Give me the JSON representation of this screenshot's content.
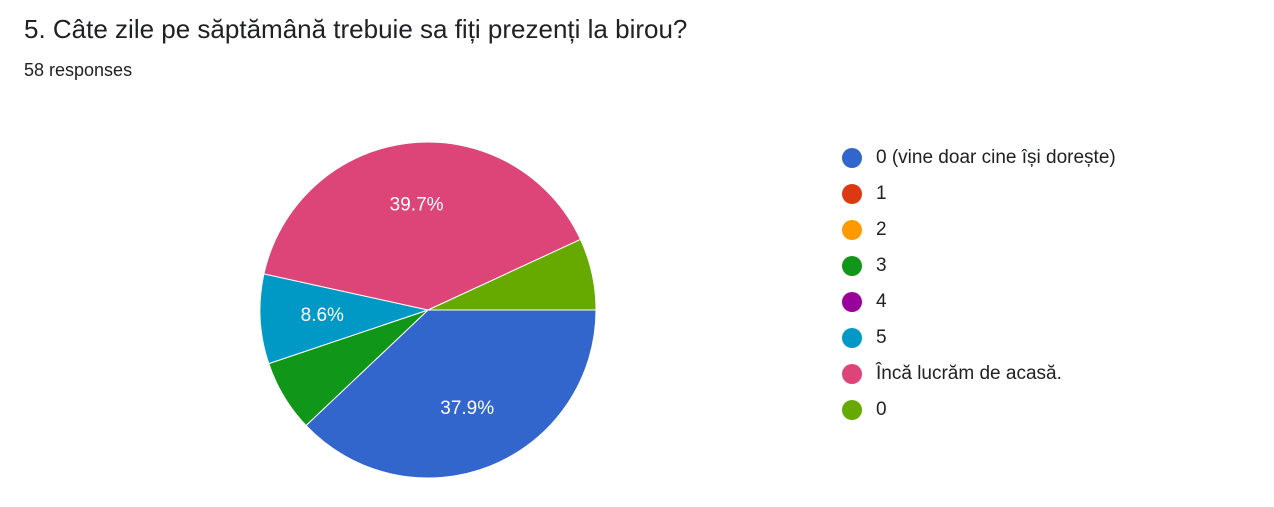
{
  "title": "5. Câte zile pe săptămână trebuie sa fiți prezenți la birou?",
  "subtitle": "58 responses",
  "chart_data": {
    "type": "pie",
    "total": 58,
    "categories": [
      "0 (vine doar cine își dorește)",
      "1",
      "2",
      "3",
      "4",
      "5",
      "Încă lucrăm de acasă.",
      "0"
    ],
    "values": [
      22,
      0,
      0,
      4,
      0,
      5,
      23,
      4
    ],
    "percent_labels": [
      "37.9%",
      "",
      "",
      "",
      "",
      "8.6%",
      "39.7%",
      ""
    ],
    "colors": [
      "#3366cc",
      "#dc3912",
      "#ff9900",
      "#109618",
      "#990099",
      "#0099c6",
      "#dd4477",
      "#66aa00"
    ],
    "legend_position": "right"
  }
}
